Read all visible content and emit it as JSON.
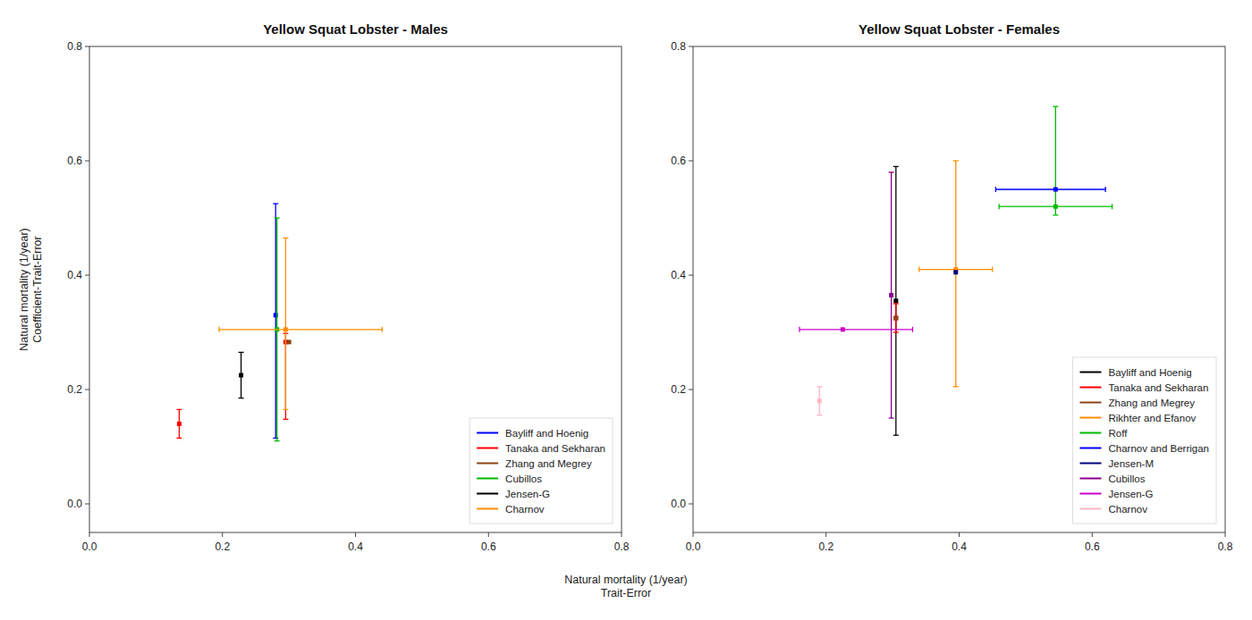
{
  "chart_data": [
    {
      "type": "scatter",
      "title": "Yellow Squat Lobster - Males",
      "xlabel": "Natural mortality (1/year)\nTrait-Error",
      "ylabel": "Natural mortality (1/year)\nCoefficient-Trait-Error",
      "xlim": [
        0.0,
        0.8
      ],
      "ylim": [
        -0.05,
        0.8
      ],
      "xticks": [
        {
          "value": 0.0,
          "label": "0.0"
        },
        0.2,
        0.4,
        0.6,
        0.8
      ],
      "yticks": [
        {
          "value": 0.0,
          "label": "0.0"
        },
        0.2,
        0.4,
        0.6,
        0.8
      ],
      "grid": false,
      "legend": "lower right",
      "marker": "square",
      "series": [
        {
          "name": "Bayliff and Hoenig",
          "color": "#0000FF",
          "x": [
            0.28
          ],
          "values": [
            0.33
          ],
          "xerr_lo": [
            0.0
          ],
          "xerr_hi": [
            0.0
          ],
          "yerr_lo": [
            0.215
          ],
          "yerr_hi": [
            0.195
          ]
        },
        {
          "name": "Tanaka and Sekharan",
          "color": "#FF0000",
          "x": [
            0.295,
            0.135
          ],
          "values": [
            0.283,
            0.14
          ],
          "xerr_lo": [
            0.0,
            0.0
          ],
          "xerr_hi": [
            0.0,
            0.0
          ],
          "yerr_lo": [
            0.135,
            0.025
          ],
          "yerr_hi": [
            0.015,
            0.025
          ]
        },
        {
          "name": "Zhang and Megrey",
          "color": "#8B4513",
          "x": [
            0.3
          ],
          "values": [
            0.283
          ],
          "xerr_lo": [
            0.0
          ],
          "xerr_hi": [
            0.0
          ],
          "yerr_lo": [
            0.0
          ],
          "yerr_hi": [
            0.0
          ]
        },
        {
          "name": "Cubillos",
          "color": "#00BB00",
          "x": [
            0.282
          ],
          "values": [
            0.305
          ],
          "xerr_lo": [
            0.0
          ],
          "xerr_hi": [
            0.0
          ],
          "yerr_lo": [
            0.195
          ],
          "yerr_hi": [
            0.195
          ]
        },
        {
          "name": "Jensen-G",
          "color": "#000000",
          "x": [
            0.228
          ],
          "values": [
            0.225
          ],
          "xerr_lo": [
            0.0
          ],
          "xerr_hi": [
            0.0
          ],
          "yerr_lo": [
            0.04
          ],
          "yerr_hi": [
            0.04
          ]
        },
        {
          "name": "Charnov",
          "color": "#FF8C00",
          "x": [
            0.295
          ],
          "values": [
            0.305
          ],
          "xerr_lo": [
            0.1
          ],
          "xerr_hi": [
            0.145
          ],
          "yerr_lo": [
            0.14
          ],
          "yerr_hi": [
            0.16
          ]
        }
      ]
    },
    {
      "type": "scatter",
      "title": "Yellow Squat Lobster - Females",
      "xlim": [
        0.0,
        0.8
      ],
      "ylim": [
        -0.05,
        0.8
      ],
      "xticks": [
        {
          "value": 0.0,
          "label": "0.0"
        },
        0.2,
        0.4,
        0.6,
        0.8
      ],
      "yticks": [
        {
          "value": 0.0,
          "label": "0.0"
        },
        0.2,
        0.4,
        0.6,
        0.8
      ],
      "grid": false,
      "legend": "lower right",
      "marker": "square",
      "series": [
        {
          "name": "Bayliff and Hoenig",
          "color": "#000000",
          "x": [
            0.305
          ],
          "values": [
            0.355
          ],
          "xerr_lo": [
            0.0
          ],
          "xerr_hi": [
            0.0
          ],
          "yerr_lo": [
            0.235
          ],
          "yerr_hi": [
            0.235
          ]
        },
        {
          "name": "Tanaka and Sekharan",
          "color": "#FF0000",
          "x": [
            0.305
          ],
          "values": [
            0.325
          ],
          "xerr_lo": [
            0.0
          ],
          "xerr_hi": [
            0.0
          ],
          "yerr_lo": [
            0.025
          ],
          "yerr_hi": [
            0.025
          ]
        },
        {
          "name": "Zhang and Megrey",
          "color": "#8B4513",
          "x": [
            0.305
          ],
          "values": [
            0.325
          ],
          "xerr_lo": [
            0.0
          ],
          "xerr_hi": [
            0.0
          ],
          "yerr_lo": [
            0.0
          ],
          "yerr_hi": [
            0.0
          ]
        },
        {
          "name": "Rikhter and Efanov",
          "color": "#FF8C00",
          "x": [
            0.395
          ],
          "values": [
            0.41
          ],
          "xerr_lo": [
            0.055
          ],
          "xerr_hi": [
            0.055
          ],
          "yerr_lo": [
            0.205
          ],
          "yerr_hi": [
            0.19
          ]
        },
        {
          "name": "Roff",
          "color": "#00BB00",
          "x": [
            0.545
          ],
          "values": [
            0.52
          ],
          "xerr_lo": [
            0.085
          ],
          "xerr_hi": [
            0.085
          ],
          "yerr_lo": [
            0.015
          ],
          "yerr_hi": [
            0.175
          ]
        },
        {
          "name": "Charnov and Berrigan",
          "color": "#0000FF",
          "x": [
            0.545
          ],
          "values": [
            0.55
          ],
          "xerr_lo": [
            0.09
          ],
          "xerr_hi": [
            0.075
          ],
          "yerr_lo": [
            0.0
          ],
          "yerr_hi": [
            0.0
          ]
        },
        {
          "name": "Jensen-M",
          "color": "#000080",
          "x": [
            0.395
          ],
          "values": [
            0.405
          ],
          "xerr_lo": [
            0.0
          ],
          "xerr_hi": [
            0.0
          ],
          "yerr_lo": [
            0.0
          ],
          "yerr_hi": [
            0.0
          ]
        },
        {
          "name": "Cubillos",
          "color": "#8B008B",
          "x": [
            0.298
          ],
          "values": [
            0.365
          ],
          "xerr_lo": [
            0.0
          ],
          "xerr_hi": [
            0.0
          ],
          "yerr_lo": [
            0.215
          ],
          "yerr_hi": [
            0.215
          ]
        },
        {
          "name": "Jensen-G",
          "color": "#CC00CC",
          "x": [
            0.225
          ],
          "values": [
            0.305
          ],
          "xerr_lo": [
            0.065
          ],
          "xerr_hi": [
            0.105
          ],
          "yerr_lo": [
            0.0
          ],
          "yerr_hi": [
            0.0
          ]
        },
        {
          "name": "Charnov",
          "color": "#FFB6C1",
          "x": [
            0.19
          ],
          "values": [
            0.18
          ],
          "xerr_lo": [
            0.0
          ],
          "xerr_hi": [
            0.0
          ],
          "yerr_lo": [
            0.025
          ],
          "yerr_hi": [
            0.025
          ]
        }
      ]
    }
  ]
}
